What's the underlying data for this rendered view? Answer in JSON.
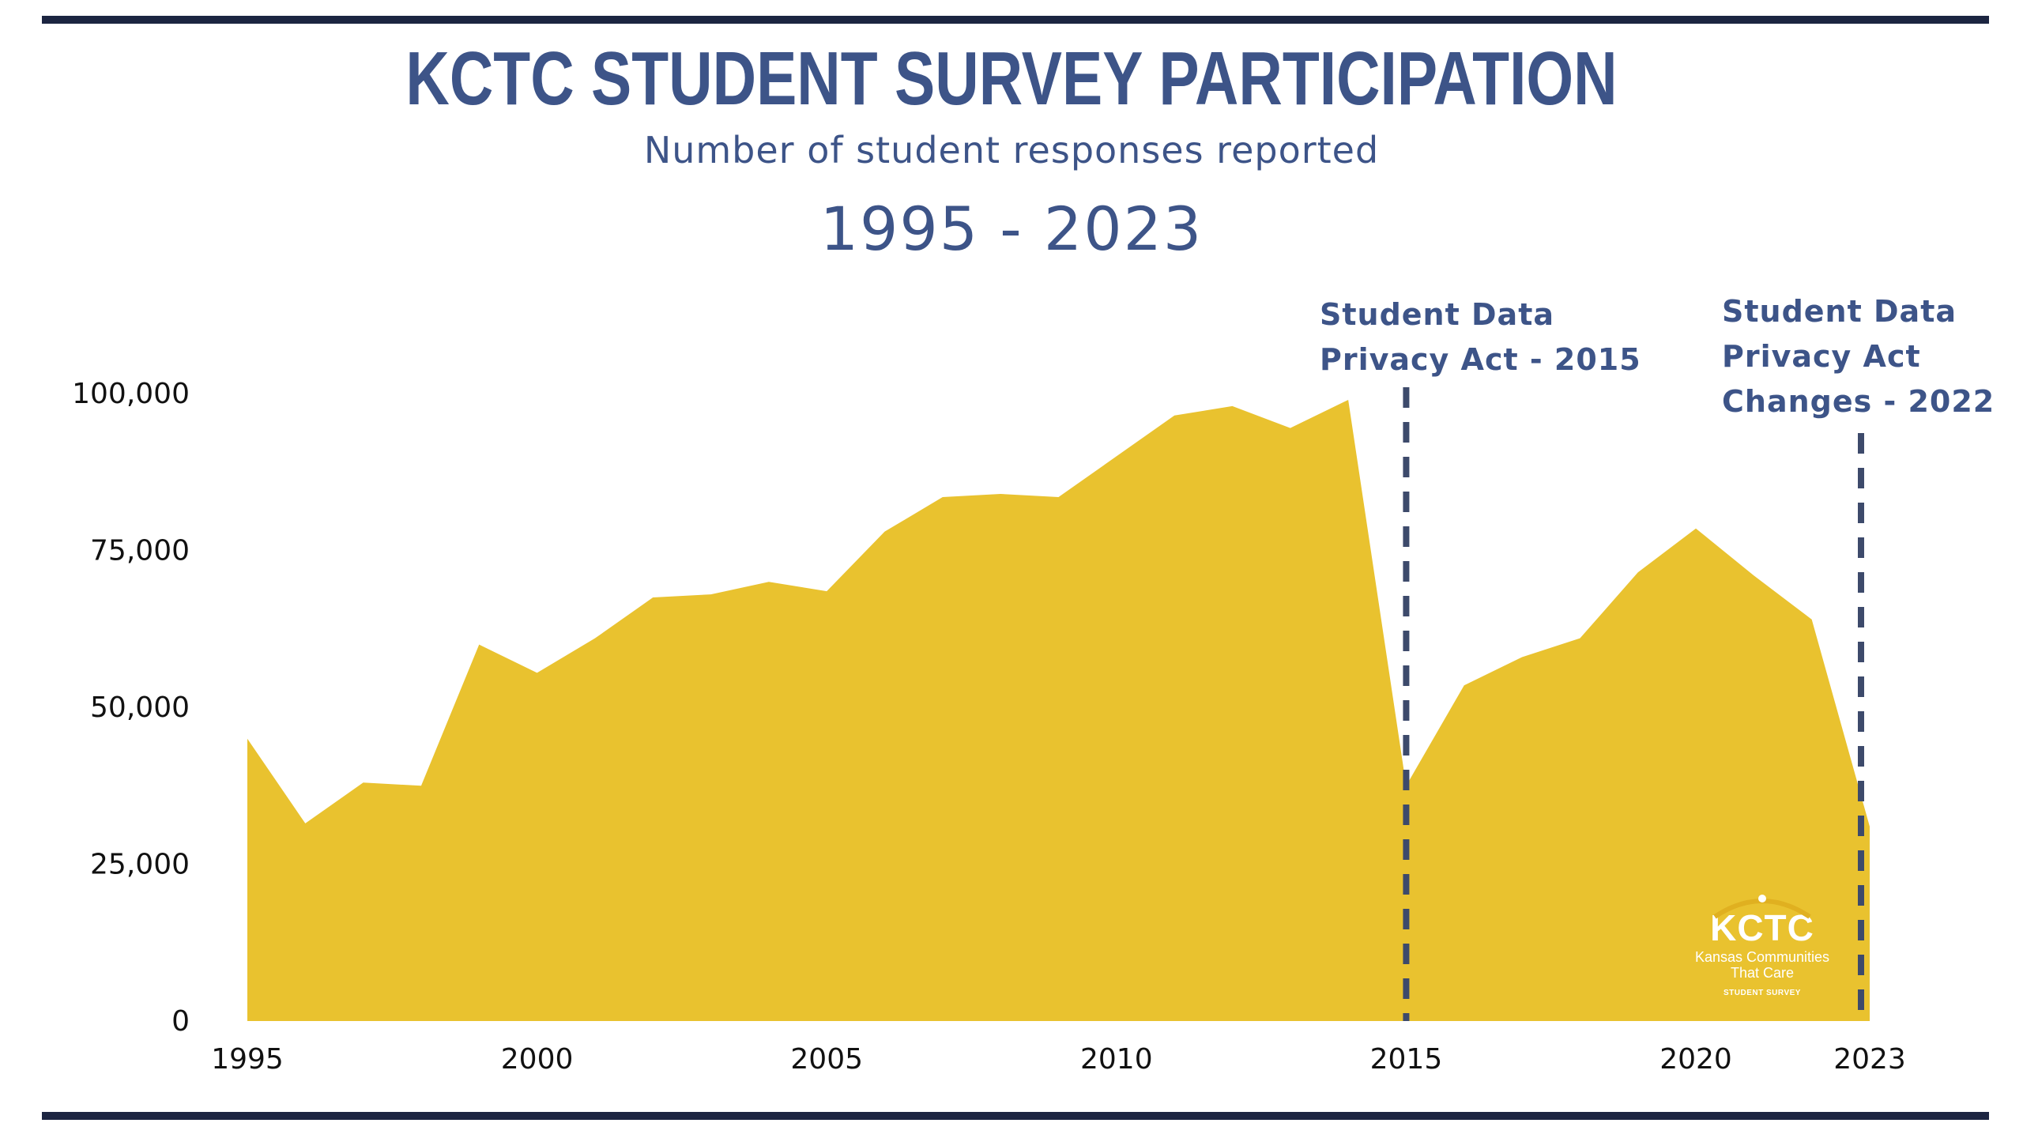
{
  "header": {
    "title": "KCTC STUDENT SURVEY PARTICIPATION",
    "subtitle": "Number of student responses reported",
    "range": "1995 - 2023"
  },
  "annotations": [
    {
      "lines": [
        "Student Data",
        "Privacy Act - 2015"
      ],
      "year": 2015
    },
    {
      "lines": [
        "Student Data",
        "Privacy Act",
        "Changes - 2022"
      ],
      "year": 2022.85
    }
  ],
  "logo": {
    "mark": "KCTC",
    "line1": "Kansas Communities",
    "line2": "That Care",
    "line3": "STUDENT SURVEY"
  },
  "colors": {
    "area": "#e9c22f",
    "text": "#3d5488",
    "rule": "#1c2541",
    "dash": "#3d4a6b"
  },
  "chart_data": {
    "type": "area",
    "title": "KCTC STUDENT SURVEY PARTICIPATION",
    "subtitle": "Number of student responses reported",
    "x": [
      1995,
      1996,
      1997,
      1998,
      1999,
      2000,
      2001,
      2002,
      2003,
      2004,
      2005,
      2006,
      2007,
      2008,
      2009,
      2010,
      2011,
      2012,
      2013,
      2014,
      2015,
      2016,
      2017,
      2018,
      2019,
      2020,
      2021,
      2022,
      2023
    ],
    "series": [
      {
        "values": [
          45000,
          31500,
          38000,
          37500,
          60000,
          55500,
          61000,
          67500,
          68000,
          70000,
          68500,
          78000,
          83500,
          84000,
          83500,
          90000,
          96500,
          98000,
          94500,
          99000,
          37500,
          53500,
          58000,
          61000,
          71500,
          78500,
          71000,
          64000,
          31000
        ]
      }
    ],
    "ylim": [
      0,
      100000
    ],
    "xlim": [
      1995,
      2023
    ],
    "yticks": [
      "0",
      "25,000",
      "50,000",
      "75,000",
      "100,000"
    ],
    "ytick_values": [
      0,
      25000,
      50000,
      75000,
      100000
    ],
    "xticks": [
      "1995",
      "2000",
      "2005",
      "2010",
      "2015",
      "2020",
      "2023"
    ],
    "xtick_values": [
      1995,
      2000,
      2005,
      2010,
      2015,
      2020,
      2023
    ],
    "grid": false,
    "legend": "none"
  }
}
